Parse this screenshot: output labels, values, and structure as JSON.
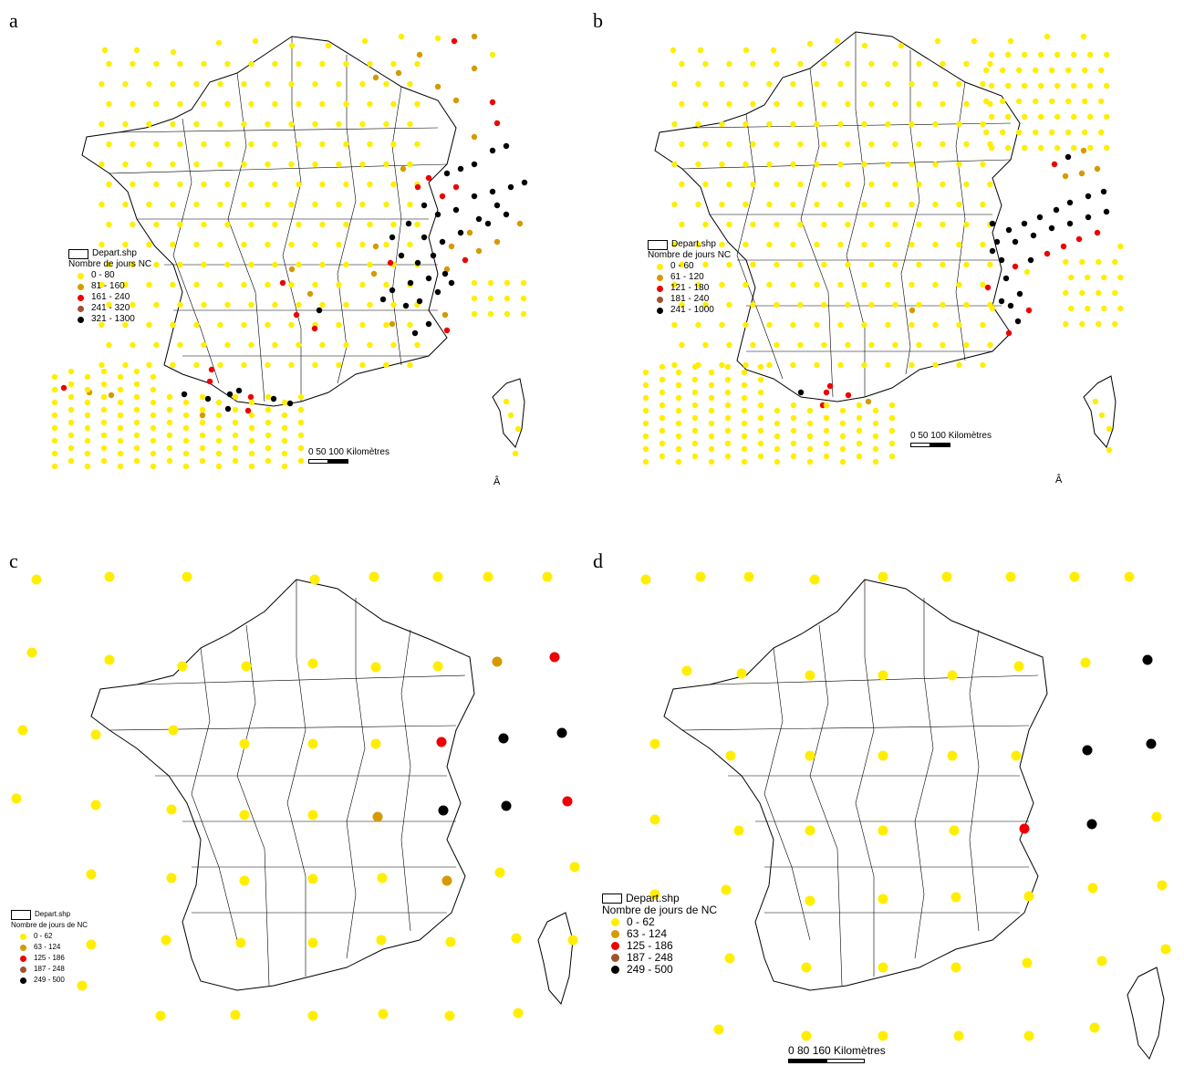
{
  "colors": {
    "c1": "#ffee00",
    "c2": "#d49a00",
    "c3": "#ee0000",
    "c4": "#a0522d",
    "c5": "#000000"
  },
  "panels": [
    {
      "letter": "a",
      "legend_file": "Depart.shp",
      "legend_title": "Nombre de jours NC",
      "classes": [
        "0 - 80",
        "81 - 160",
        "161 - 240",
        "241 - 320",
        "321 - 1300"
      ],
      "scale_label": "0   50 100   Kilomètres",
      "north": "Â"
    },
    {
      "letter": "b",
      "legend_file": "Depart.shp",
      "legend_title": "Nombre de jours NC",
      "classes": [
        "0 - 60",
        "61 - 120",
        "121 - 180",
        "181 - 240",
        "241 - 1000"
      ],
      "scale_label": "0   50 100   Kilomètres",
      "north": "Â"
    },
    {
      "letter": "c",
      "legend_file": "Depart.shp",
      "legend_title": "Nombre de jours de NC",
      "classes": [
        "0 - 62",
        "63 - 124",
        "125 - 186",
        "187 - 248",
        "249 - 500"
      ]
    },
    {
      "letter": "d",
      "legend_file": "Depart.shp",
      "legend_title": "Nombre de jours de NC",
      "classes": [
        "0 - 62",
        "63 - 124",
        "125 - 186",
        "187 - 248",
        "249 - 500"
      ],
      "scale_label": "0       80     160   Kilomètres"
    }
  ]
}
